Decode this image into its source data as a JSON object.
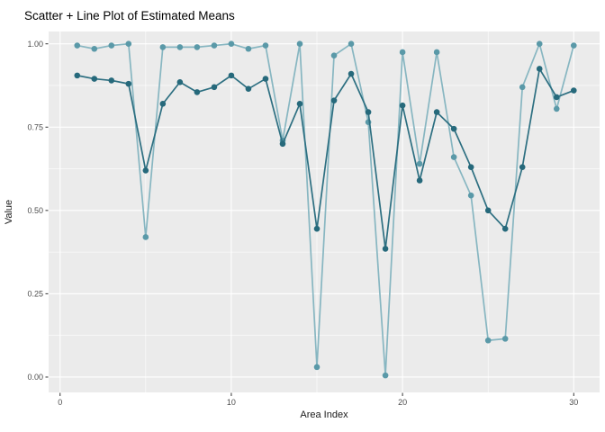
{
  "title": "Scatter + Line Plot of Estimated Means",
  "chart_data": {
    "type": "line",
    "title": "Scatter + Line Plot of Estimated Means",
    "xlabel": "Area Index",
    "ylabel": "Value",
    "grid": "on",
    "legend_position": "none",
    "panel_bg": "#EBEBEB",
    "grid_color": "#FFFFFF",
    "tick_color": "#333333",
    "x": [
      1,
      2,
      3,
      4,
      5,
      6,
      7,
      8,
      9,
      10,
      11,
      12,
      13,
      14,
      15,
      16,
      17,
      18,
      19,
      20,
      21,
      22,
      23,
      24,
      25,
      26,
      27,
      28,
      29,
      30
    ],
    "series": [
      {
        "name": "light-teal-series",
        "line_color": "#87B6C1",
        "point_color": "#5A99A8",
        "values": [
          0.995,
          0.985,
          0.995,
          1.0,
          0.42,
          0.99,
          0.99,
          0.99,
          0.995,
          1.0,
          0.985,
          0.995,
          0.71,
          1.0,
          0.03,
          0.965,
          1.0,
          0.765,
          0.005,
          0.975,
          0.64,
          0.975,
          0.66,
          0.545,
          0.11,
          0.115,
          0.87,
          1.0,
          0.805,
          0.995
        ]
      },
      {
        "name": "dark-teal-series",
        "line_color": "#2D6F81",
        "point_color": "#26697B",
        "values": [
          0.905,
          0.895,
          0.89,
          0.88,
          0.62,
          0.82,
          0.885,
          0.855,
          0.87,
          0.905,
          0.865,
          0.895,
          0.7,
          0.82,
          0.445,
          0.83,
          0.91,
          0.795,
          0.385,
          0.815,
          0.59,
          0.795,
          0.745,
          0.63,
          0.5,
          0.445,
          0.63,
          0.925,
          0.84,
          0.86
        ]
      }
    ],
    "x_ticks": {
      "values": [
        0,
        10,
        20,
        30
      ],
      "labels": [
        "0",
        "10",
        "20",
        "30"
      ]
    },
    "y_ticks": {
      "values": [
        0,
        0.25,
        0.5,
        0.75,
        1
      ],
      "labels": [
        "0.00",
        "0.25",
        "0.50",
        "0.75",
        "1.00"
      ]
    },
    "x_minor": [
      5,
      15,
      25
    ],
    "y_minor": [
      0.125,
      0.375,
      0.625,
      0.875
    ],
    "xlim": [
      -0.67,
      31.51
    ],
    "ylim": [
      -0.046,
      1.037
    ]
  }
}
